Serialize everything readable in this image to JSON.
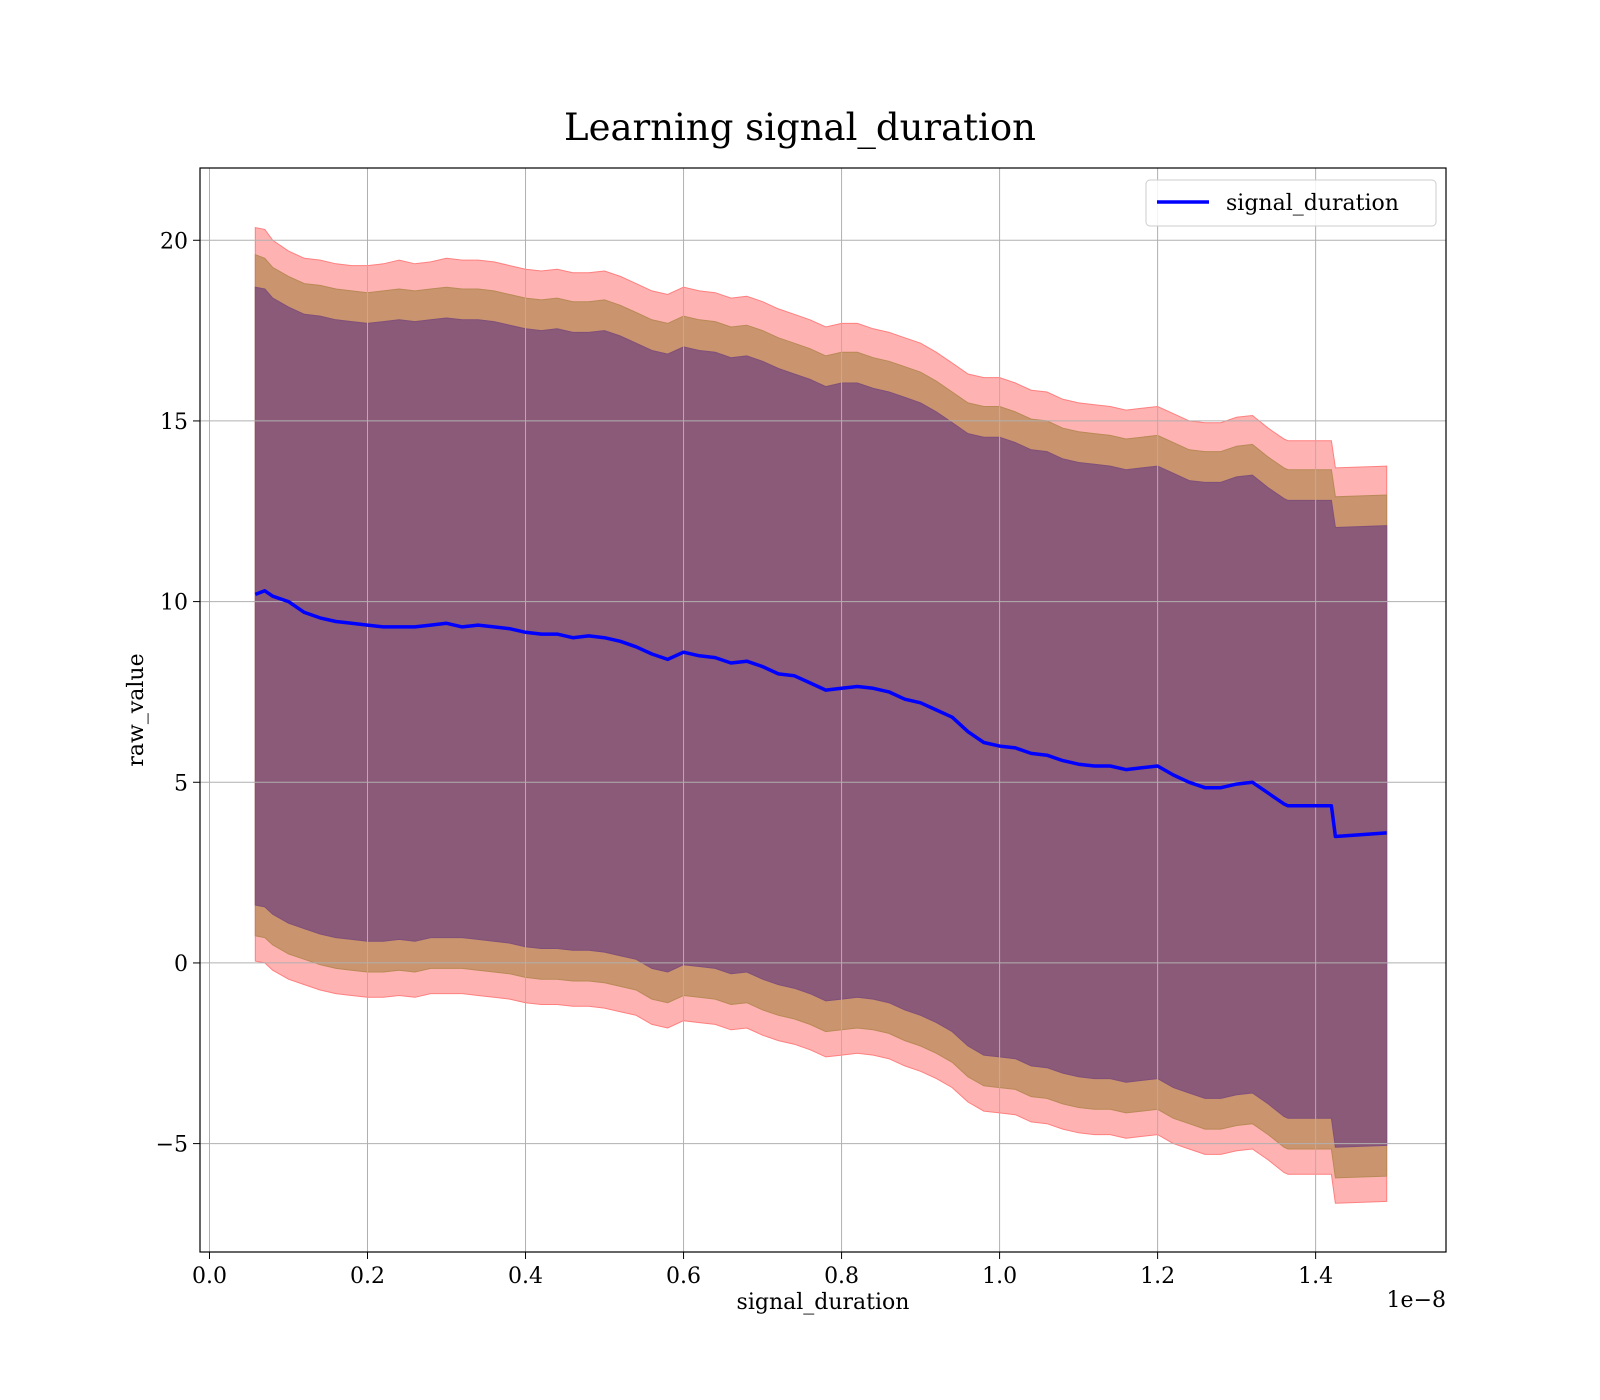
{
  "chart_data": {
    "type": "area",
    "title": "Learning signal_duration",
    "xlabel": "signal_duration",
    "ylabel": "raw_value",
    "x_offset_text": "1e−8",
    "x_scale": 1e-08,
    "xlim": [
      -0.012,
      1.565
    ],
    "ylim": [
      -8.0,
      22.0
    ],
    "x_ticks": [
      0.0,
      0.2,
      0.4,
      0.6,
      0.8,
      1.0,
      1.2,
      1.4
    ],
    "x_tick_labels": [
      "0.0",
      "0.2",
      "0.4",
      "0.6",
      "0.8",
      "1.0",
      "1.2",
      "1.4"
    ],
    "y_ticks": [
      -5,
      0,
      5,
      10,
      15,
      20
    ],
    "y_tick_labels": [
      "−5",
      "0",
      "5",
      "10",
      "15",
      "20"
    ],
    "grid": true,
    "legend_position": "top-right",
    "series": [
      {
        "name": "signal_duration",
        "color": "#0000ff",
        "x": [
          0.058,
          0.07,
          0.08,
          0.1,
          0.12,
          0.14,
          0.16,
          0.18,
          0.2,
          0.22,
          0.24,
          0.26,
          0.28,
          0.3,
          0.32,
          0.34,
          0.36,
          0.38,
          0.4,
          0.42,
          0.44,
          0.46,
          0.48,
          0.5,
          0.52,
          0.54,
          0.56,
          0.58,
          0.6,
          0.62,
          0.64,
          0.66,
          0.68,
          0.7,
          0.72,
          0.74,
          0.76,
          0.78,
          0.8,
          0.82,
          0.84,
          0.86,
          0.88,
          0.9,
          0.92,
          0.94,
          0.96,
          0.98,
          1.0,
          1.02,
          1.04,
          1.06,
          1.08,
          1.1,
          1.12,
          1.14,
          1.16,
          1.18,
          1.2,
          1.22,
          1.24,
          1.26,
          1.28,
          1.3,
          1.32,
          1.34,
          1.36,
          1.365,
          1.42,
          1.425,
          1.49
        ],
        "values": [
          10.2,
          10.3,
          10.15,
          10.0,
          9.7,
          9.55,
          9.45,
          9.4,
          9.35,
          9.3,
          9.3,
          9.3,
          9.35,
          9.4,
          9.3,
          9.35,
          9.3,
          9.25,
          9.15,
          9.1,
          9.1,
          9.0,
          9.05,
          9.0,
          8.9,
          8.75,
          8.55,
          8.4,
          8.6,
          8.5,
          8.45,
          8.3,
          8.35,
          8.2,
          8.0,
          7.95,
          7.75,
          7.55,
          7.6,
          7.65,
          7.6,
          7.5,
          7.3,
          7.2,
          7.0,
          6.8,
          6.4,
          6.1,
          6.0,
          5.95,
          5.8,
          5.75,
          5.6,
          5.5,
          5.45,
          5.45,
          5.35,
          5.4,
          5.45,
          5.2,
          5.0,
          4.85,
          4.85,
          4.95,
          5.0,
          4.7,
          4.4,
          4.35,
          4.35,
          3.5,
          3.6
        ],
        "band_outer_upper": [
          20.35,
          20.3,
          20.0,
          19.7,
          19.5,
          19.45,
          19.35,
          19.3,
          19.3,
          19.35,
          19.45,
          19.35,
          19.4,
          19.5,
          19.45,
          19.45,
          19.4,
          19.3,
          19.2,
          19.15,
          19.2,
          19.1,
          19.1,
          19.15,
          19.0,
          18.8,
          18.6,
          18.5,
          18.7,
          18.6,
          18.55,
          18.4,
          18.45,
          18.3,
          18.1,
          17.95,
          17.8,
          17.6,
          17.7,
          17.7,
          17.55,
          17.45,
          17.3,
          17.15,
          16.9,
          16.6,
          16.3,
          16.2,
          16.2,
          16.05,
          15.85,
          15.8,
          15.6,
          15.5,
          15.45,
          15.4,
          15.3,
          15.35,
          15.4,
          15.2,
          15.0,
          14.95,
          14.95,
          15.1,
          15.15,
          14.8,
          14.5,
          14.45,
          14.45,
          13.7,
          13.75
        ],
        "band_outer_lower": [
          0.05,
          0.0,
          -0.2,
          -0.45,
          -0.6,
          -0.75,
          -0.85,
          -0.9,
          -0.95,
          -0.95,
          -0.9,
          -0.95,
          -0.85,
          -0.85,
          -0.85,
          -0.9,
          -0.95,
          -1.0,
          -1.1,
          -1.15,
          -1.15,
          -1.2,
          -1.2,
          -1.25,
          -1.35,
          -1.45,
          -1.7,
          -1.8,
          -1.6,
          -1.65,
          -1.7,
          -1.85,
          -1.8,
          -2.0,
          -2.15,
          -2.25,
          -2.4,
          -2.6,
          -2.55,
          -2.5,
          -2.55,
          -2.65,
          -2.85,
          -3.0,
          -3.2,
          -3.45,
          -3.85,
          -4.1,
          -4.15,
          -4.2,
          -4.4,
          -4.45,
          -4.6,
          -4.7,
          -4.75,
          -4.75,
          -4.85,
          -4.8,
          -4.75,
          -5.0,
          -5.15,
          -5.3,
          -5.3,
          -5.2,
          -5.15,
          -5.45,
          -5.8,
          -5.85,
          -5.85,
          -6.65,
          -6.6
        ],
        "band_mid_upper": [
          19.6,
          19.5,
          19.25,
          19.0,
          18.8,
          18.75,
          18.65,
          18.6,
          18.55,
          18.6,
          18.65,
          18.6,
          18.65,
          18.7,
          18.65,
          18.65,
          18.6,
          18.5,
          18.4,
          18.35,
          18.4,
          18.3,
          18.3,
          18.35,
          18.2,
          18.0,
          17.8,
          17.7,
          17.9,
          17.8,
          17.75,
          17.6,
          17.65,
          17.5,
          17.3,
          17.15,
          17.0,
          16.8,
          16.9,
          16.9,
          16.75,
          16.65,
          16.5,
          16.35,
          16.1,
          15.8,
          15.5,
          15.4,
          15.4,
          15.25,
          15.05,
          15.0,
          14.8,
          14.7,
          14.65,
          14.6,
          14.5,
          14.55,
          14.6,
          14.4,
          14.2,
          14.15,
          14.15,
          14.3,
          14.35,
          14.0,
          13.7,
          13.65,
          13.65,
          12.9,
          12.95
        ],
        "band_mid_lower": [
          0.75,
          0.7,
          0.5,
          0.25,
          0.1,
          -0.05,
          -0.15,
          -0.2,
          -0.25,
          -0.25,
          -0.2,
          -0.25,
          -0.15,
          -0.15,
          -0.15,
          -0.2,
          -0.25,
          -0.3,
          -0.4,
          -0.45,
          -0.45,
          -0.5,
          -0.5,
          -0.55,
          -0.65,
          -0.75,
          -1.0,
          -1.1,
          -0.9,
          -0.95,
          -1.0,
          -1.15,
          -1.1,
          -1.3,
          -1.45,
          -1.55,
          -1.7,
          -1.9,
          -1.85,
          -1.8,
          -1.85,
          -1.95,
          -2.15,
          -2.3,
          -2.5,
          -2.75,
          -3.15,
          -3.4,
          -3.45,
          -3.5,
          -3.7,
          -3.75,
          -3.9,
          -4.0,
          -4.05,
          -4.05,
          -4.15,
          -4.1,
          -4.05,
          -4.3,
          -4.45,
          -4.6,
          -4.6,
          -4.5,
          -4.45,
          -4.75,
          -5.1,
          -5.15,
          -5.15,
          -5.95,
          -5.9
        ],
        "band_inner_upper": [
          18.7,
          18.65,
          18.4,
          18.15,
          17.95,
          17.9,
          17.8,
          17.75,
          17.7,
          17.75,
          17.8,
          17.75,
          17.8,
          17.85,
          17.8,
          17.8,
          17.75,
          17.65,
          17.55,
          17.5,
          17.55,
          17.45,
          17.45,
          17.5,
          17.35,
          17.15,
          16.95,
          16.85,
          17.05,
          16.95,
          16.9,
          16.75,
          16.8,
          16.65,
          16.45,
          16.3,
          16.15,
          15.95,
          16.05,
          16.05,
          15.9,
          15.8,
          15.65,
          15.5,
          15.25,
          14.95,
          14.65,
          14.55,
          14.55,
          14.4,
          14.2,
          14.15,
          13.95,
          13.85,
          13.8,
          13.75,
          13.65,
          13.7,
          13.75,
          13.55,
          13.35,
          13.3,
          13.3,
          13.45,
          13.5,
          13.15,
          12.85,
          12.8,
          12.8,
          12.05,
          12.1
        ],
        "band_inner_lower": [
          1.6,
          1.55,
          1.35,
          1.1,
          0.95,
          0.8,
          0.7,
          0.65,
          0.6,
          0.6,
          0.65,
          0.6,
          0.7,
          0.7,
          0.7,
          0.65,
          0.6,
          0.55,
          0.45,
          0.4,
          0.4,
          0.35,
          0.35,
          0.3,
          0.2,
          0.1,
          -0.15,
          -0.25,
          -0.05,
          -0.1,
          -0.15,
          -0.3,
          -0.25,
          -0.45,
          -0.6,
          -0.7,
          -0.85,
          -1.05,
          -1.0,
          -0.95,
          -1.0,
          -1.1,
          -1.3,
          -1.45,
          -1.65,
          -1.9,
          -2.3,
          -2.55,
          -2.6,
          -2.65,
          -2.85,
          -2.9,
          -3.05,
          -3.15,
          -3.2,
          -3.2,
          -3.3,
          -3.25,
          -3.2,
          -3.45,
          -3.6,
          -3.75,
          -3.75,
          -3.65,
          -3.6,
          -3.9,
          -4.25,
          -4.3,
          -4.3,
          -5.1,
          -5.05
        ]
      }
    ]
  },
  "colors": {
    "line": "#0000ff",
    "band_outer": "#ff7f7f",
    "band_mid": "#b88a57",
    "band_inner": "#80507a",
    "grid": "#b0b0b0"
  }
}
